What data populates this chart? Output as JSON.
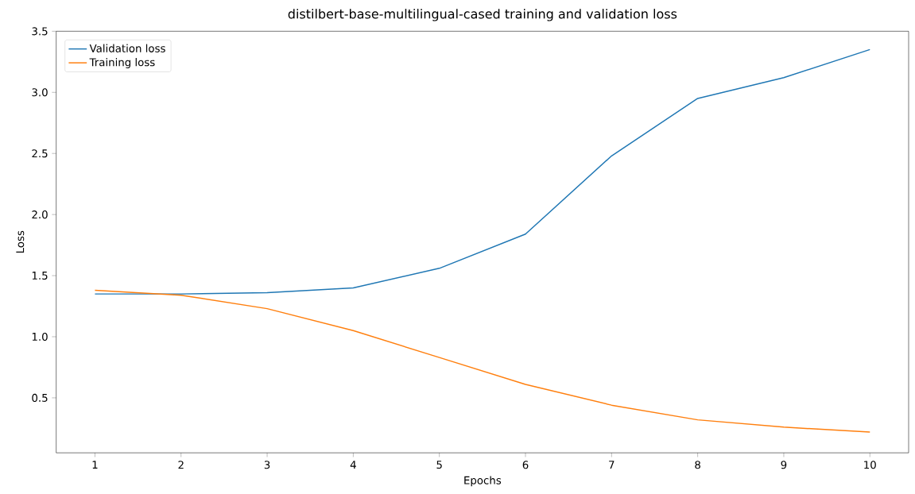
{
  "chart_data": {
    "type": "line",
    "title": "distilbert-base-multilingual-cased training and validation loss",
    "xlabel": "Epochs",
    "ylabel": "Loss",
    "x": [
      1,
      2,
      3,
      4,
      5,
      6,
      7,
      8,
      9,
      10
    ],
    "series": [
      {
        "name": "Validation loss",
        "color": "#1f77b4",
        "values": [
          1.35,
          1.35,
          1.36,
          1.4,
          1.56,
          1.84,
          2.48,
          2.95,
          3.12,
          3.35
        ]
      },
      {
        "name": "Training loss",
        "color": "#ff7f0e",
        "values": [
          1.38,
          1.34,
          1.23,
          1.05,
          0.83,
          0.61,
          0.44,
          0.32,
          0.26,
          0.22
        ]
      }
    ],
    "xlim": [
      0.55,
      10.45
    ],
    "ylim": [
      0.05,
      3.5
    ],
    "xticks": [
      1,
      2,
      3,
      4,
      5,
      6,
      7,
      8,
      9,
      10
    ],
    "yticks": [
      0.5,
      {
        "value": 1,
        "label": "1.0"
      },
      1.5,
      {
        "value": 2,
        "label": "2.0"
      },
      2.5,
      {
        "value": 3,
        "label": "3.0"
      },
      3.5
    ],
    "grid": false,
    "legend": "top left",
    "marker": "none",
    "line_style": "solid"
  }
}
